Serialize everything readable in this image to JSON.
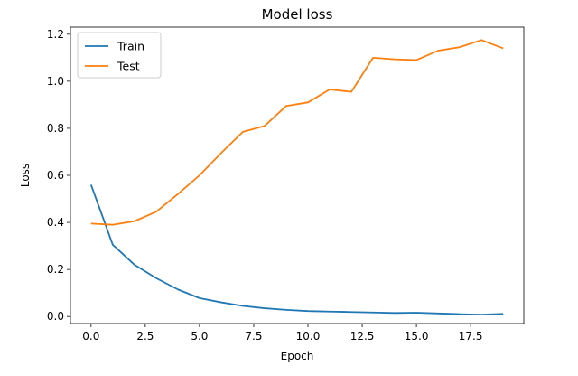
{
  "chart_data": {
    "type": "line",
    "title": "Model loss",
    "xlabel": "Epoch",
    "ylabel": "Loss",
    "xlim": [
      -0.95,
      19.95
    ],
    "ylim": [
      -0.03,
      1.23
    ],
    "xticks": [
      0.0,
      2.5,
      5.0,
      7.5,
      10.0,
      12.5,
      15.0,
      17.5
    ],
    "xtick_labels": [
      "0.0",
      "2.5",
      "5.0",
      "7.5",
      "10.0",
      "12.5",
      "15.0",
      "17.5"
    ],
    "yticks": [
      0.0,
      0.2,
      0.4,
      0.6,
      0.8,
      1.0,
      1.2
    ],
    "ytick_labels": [
      "0.0",
      "0.2",
      "0.4",
      "0.6",
      "0.8",
      "1.0",
      "1.2"
    ],
    "grid": false,
    "legend_position": "top-left",
    "x": [
      0,
      1,
      2,
      3,
      4,
      5,
      6,
      7,
      8,
      9,
      10,
      11,
      12,
      13,
      14,
      15,
      16,
      17,
      18,
      19
    ],
    "series": [
      {
        "name": "Train",
        "color": "#1f77b4",
        "values": [
          0.56,
          0.305,
          0.22,
          0.163,
          0.115,
          0.078,
          0.06,
          0.045,
          0.035,
          0.028,
          0.023,
          0.021,
          0.019,
          0.017,
          0.015,
          0.016,
          0.013,
          0.01,
          0.008,
          0.011
        ]
      },
      {
        "name": "Test",
        "color": "#ff7f0e",
        "values": [
          0.395,
          0.39,
          0.405,
          0.445,
          0.52,
          0.6,
          0.695,
          0.785,
          0.81,
          0.895,
          0.91,
          0.965,
          0.955,
          1.1,
          1.093,
          1.09,
          1.13,
          1.145,
          1.175,
          1.14
        ]
      }
    ]
  }
}
